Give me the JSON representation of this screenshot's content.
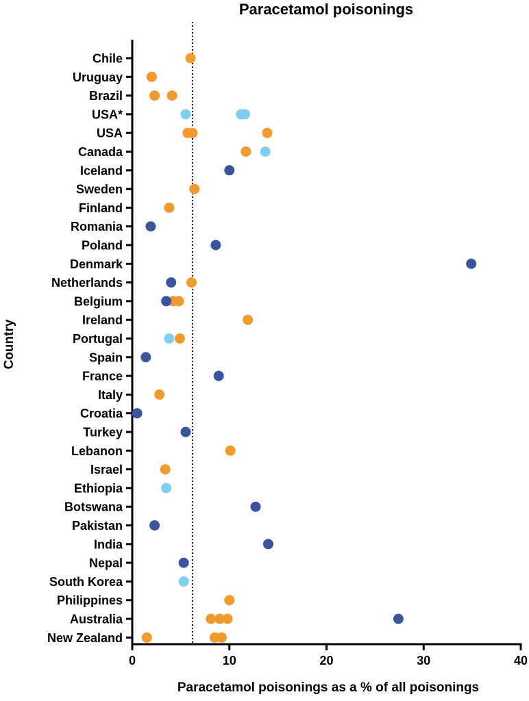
{
  "chart_data": {
    "type": "scatter",
    "title": "Paracetamol poisonings",
    "xlabel": "Paracetamol poisonings as a % of all poisonings",
    "ylabel": "Country",
    "xlim": [
      0,
      40
    ],
    "xticks": [
      "0",
      "10",
      "20",
      "30",
      "40"
    ],
    "reference_line": 6.2,
    "grid": false,
    "colors": {
      "orange": "#F39A2D",
      "light_blue": "#7FCFEF",
      "dark_blue": "#3A54A0"
    },
    "categories": [
      "Chile",
      "Uruguay",
      "Brazil",
      "USA*",
      "USA",
      "Canada",
      "Iceland",
      "Sweden",
      "Finland",
      "Romania",
      "Poland",
      "Denmark",
      "Netherlands",
      "Belgium",
      "Ireland",
      "Portugal",
      "Spain",
      "France",
      "Italy",
      "Croatia",
      "Turkey",
      "Lebanon",
      "Israel",
      "Ethiopia",
      "Botswana",
      "Pakistan",
      "India",
      "Nepal",
      "South Korea",
      "Philippines",
      "Australia",
      "New Zealand"
    ],
    "points": [
      {
        "country": "Chile",
        "x": 6.0,
        "color": "orange"
      },
      {
        "country": "Uruguay",
        "x": 2.0,
        "color": "orange"
      },
      {
        "country": "Brazil",
        "x": 2.3,
        "color": "orange"
      },
      {
        "country": "Brazil",
        "x": 4.1,
        "color": "orange"
      },
      {
        "country": "USA*",
        "x": 5.5,
        "color": "light_blue"
      },
      {
        "country": "USA*",
        "x": 11.2,
        "color": "light_blue"
      },
      {
        "country": "USA*",
        "x": 11.6,
        "color": "light_blue"
      },
      {
        "country": "USA",
        "x": 5.7,
        "color": "orange"
      },
      {
        "country": "USA",
        "x": 6.2,
        "color": "orange"
      },
      {
        "country": "USA",
        "x": 13.9,
        "color": "orange"
      },
      {
        "country": "Canada",
        "x": 11.7,
        "color": "orange"
      },
      {
        "country": "Canada",
        "x": 13.7,
        "color": "light_blue"
      },
      {
        "country": "Iceland",
        "x": 10.0,
        "color": "dark_blue"
      },
      {
        "country": "Sweden",
        "x": 6.4,
        "color": "orange"
      },
      {
        "country": "Finland",
        "x": 3.8,
        "color": "orange"
      },
      {
        "country": "Romania",
        "x": 1.9,
        "color": "dark_blue"
      },
      {
        "country": "Poland",
        "x": 8.6,
        "color": "dark_blue"
      },
      {
        "country": "Denmark",
        "x": 34.9,
        "color": "dark_blue"
      },
      {
        "country": "Netherlands",
        "x": 4.0,
        "color": "dark_blue"
      },
      {
        "country": "Netherlands",
        "x": 6.1,
        "color": "orange"
      },
      {
        "country": "Belgium",
        "x": 4.2,
        "color": "orange"
      },
      {
        "country": "Belgium",
        "x": 4.8,
        "color": "orange"
      },
      {
        "country": "Belgium",
        "x": 3.5,
        "color": "dark_blue"
      },
      {
        "country": "Ireland",
        "x": 11.9,
        "color": "orange"
      },
      {
        "country": "Portugal",
        "x": 3.8,
        "color": "light_blue"
      },
      {
        "country": "Portugal",
        "x": 4.9,
        "color": "orange"
      },
      {
        "country": "Spain",
        "x": 1.4,
        "color": "dark_blue"
      },
      {
        "country": "France",
        "x": 8.9,
        "color": "dark_blue"
      },
      {
        "country": "Italy",
        "x": 2.8,
        "color": "orange"
      },
      {
        "country": "Croatia",
        "x": 0.5,
        "color": "dark_blue"
      },
      {
        "country": "Turkey",
        "x": 5.5,
        "color": "dark_blue"
      },
      {
        "country": "Lebanon",
        "x": 10.1,
        "color": "orange"
      },
      {
        "country": "Israel",
        "x": 3.4,
        "color": "orange"
      },
      {
        "country": "Ethiopia",
        "x": 3.5,
        "color": "light_blue"
      },
      {
        "country": "Botswana",
        "x": 12.7,
        "color": "dark_blue"
      },
      {
        "country": "Pakistan",
        "x": 2.3,
        "color": "dark_blue"
      },
      {
        "country": "India",
        "x": 14.0,
        "color": "dark_blue"
      },
      {
        "country": "Nepal",
        "x": 5.3,
        "color": "dark_blue"
      },
      {
        "country": "South Korea",
        "x": 5.3,
        "color": "light_blue"
      },
      {
        "country": "Philippines",
        "x": 10.0,
        "color": "orange"
      },
      {
        "country": "Australia",
        "x": 8.1,
        "color": "orange"
      },
      {
        "country": "Australia",
        "x": 9.0,
        "color": "orange"
      },
      {
        "country": "Australia",
        "x": 9.8,
        "color": "orange"
      },
      {
        "country": "Australia",
        "x": 27.4,
        "color": "dark_blue"
      },
      {
        "country": "New Zealand",
        "x": 1.5,
        "color": "orange"
      },
      {
        "country": "New Zealand",
        "x": 8.5,
        "color": "orange"
      },
      {
        "country": "New Zealand",
        "x": 9.2,
        "color": "orange"
      }
    ]
  }
}
